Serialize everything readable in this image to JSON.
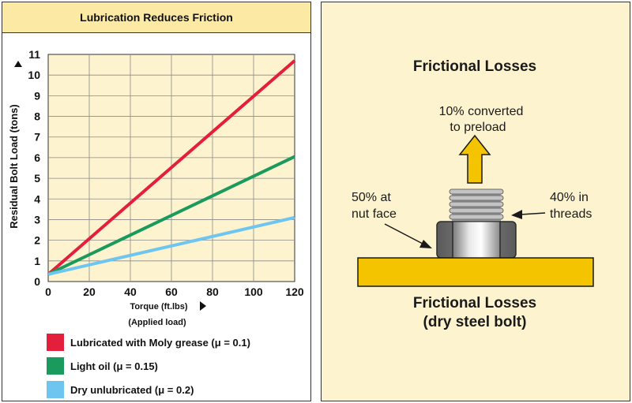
{
  "chart_data": {
    "type": "line",
    "title": "Lubrication Reduces Friction",
    "xlabel": "Torque  (ft.lbs)",
    "xlabel_sub": "(Applied load)",
    "ylabel": "Residual Bolt Load  (tons)",
    "xlim": [
      0,
      120
    ],
    "ylim": [
      0,
      11
    ],
    "xticks": [
      0,
      20,
      40,
      60,
      80,
      100,
      120
    ],
    "yticks": [
      0,
      1,
      2,
      3,
      4,
      5,
      6,
      7,
      8,
      9,
      10,
      11
    ],
    "xtick_labels": [
      "0",
      "20",
      "40",
      "60",
      "80",
      "100",
      "120"
    ],
    "ytick_labels": [
      "0",
      "1",
      "2",
      "3",
      "4",
      "5",
      "6",
      "7",
      "8",
      "9",
      "10",
      "11"
    ],
    "grid": true,
    "legend_position": "bottom",
    "series": [
      {
        "name": "Lubricated with Moly grease (μ = 0.1)",
        "color": "#e41f3b",
        "x": [
          0,
          120
        ],
        "y": [
          0.35,
          10.7
        ]
      },
      {
        "name": "Light oil (μ = 0.15)",
        "color": "#1a9a5c",
        "x": [
          0,
          120
        ],
        "y": [
          0.35,
          6.05
        ]
      },
      {
        "name": "Dry unlubricated (μ = 0.2)",
        "color": "#6ec6f0",
        "x": [
          0,
          120
        ],
        "y": [
          0.35,
          3.1
        ]
      }
    ]
  },
  "diagram": {
    "title": "Frictional Losses",
    "preload_line1": "10% converted",
    "preload_line2": "to preload",
    "nut_face_line1": "50% at",
    "nut_face_line2": "nut face",
    "threads_line1": "40% in",
    "threads_line2": "threads",
    "caption_line1": "Frictional Losses",
    "caption_line2": "(dry steel bolt)",
    "colors": {
      "background": "#fdf3cf",
      "plate": "#f5c400",
      "arrow": "#f5c400",
      "nut": "#6e6e6e",
      "thread": "#b4b4b4"
    }
  }
}
